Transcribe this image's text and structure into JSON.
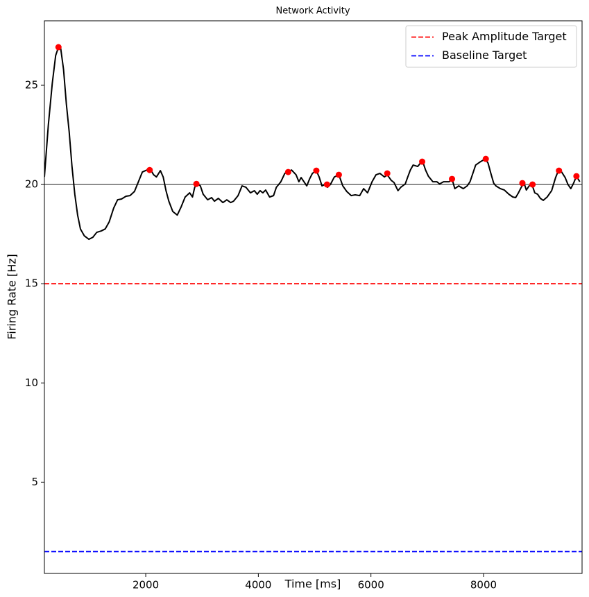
{
  "chart_data": {
    "type": "line",
    "title": "Network Activity",
    "x_label": "Time [ms]",
    "y_label": "Firing Rate [Hz]",
    "xlim": [
      200,
      9750
    ],
    "ylim": [
      0.4,
      28.25
    ],
    "xticks": [
      2000,
      4000,
      6000,
      8000
    ],
    "yticks": [
      5,
      10,
      15,
      20,
      25
    ],
    "legend": "upper right",
    "series": [
      {
        "type": "line",
        "color": "#000000",
        "x": [
          200,
          270,
          340,
          400,
          450,
          490,
          540,
          590,
          640,
          690,
          740,
          790,
          840,
          910,
          990,
          1060,
          1130,
          1210,
          1280,
          1350,
          1430,
          1500,
          1570,
          1650,
          1720,
          1800,
          1870,
          1940,
          2020,
          2090,
          2140,
          2190,
          2260,
          2310,
          2360,
          2410,
          2480,
          2560,
          2630,
          2700,
          2780,
          2830,
          2870,
          2920,
          2970,
          3020,
          3100,
          3170,
          3220,
          3290,
          3370,
          3440,
          3510,
          3560,
          3640,
          3710,
          3780,
          3860,
          3930,
          3980,
          4030,
          4080,
          4130,
          4200,
          4270,
          4320,
          4400,
          4470,
          4540,
          4590,
          4670,
          4720,
          4760,
          4810,
          4860,
          4910,
          4960,
          5030,
          5080,
          5130,
          5180,
          5230,
          5280,
          5350,
          5430,
          5500,
          5570,
          5650,
          5720,
          5800,
          5870,
          5940,
          6020,
          6090,
          6160,
          6240,
          6290,
          6360,
          6410,
          6480,
          6530,
          6610,
          6650,
          6700,
          6750,
          6830,
          6880,
          6920,
          6970,
          7020,
          7100,
          7170,
          7220,
          7290,
          7390,
          7440,
          7490,
          7560,
          7640,
          7710,
          7760,
          7810,
          7860,
          7930,
          8030,
          8080,
          8130,
          8180,
          8220,
          8300,
          8370,
          8450,
          8520,
          8570,
          8620,
          8670,
          8720,
          8760,
          8810,
          8860,
          8910,
          8960,
          9010,
          9060,
          9130,
          9210,
          9280,
          9330,
          9380,
          9450,
          9500,
          9550,
          9600,
          9650,
          9710
        ],
        "values": [
          20.38,
          23.0,
          25.1,
          26.5,
          26.92,
          26.85,
          25.8,
          24.06,
          22.66,
          20.91,
          19.51,
          18.46,
          17.76,
          17.41,
          17.24,
          17.34,
          17.59,
          17.66,
          17.76,
          18.11,
          18.81,
          19.23,
          19.27,
          19.41,
          19.44,
          19.65,
          20.14,
          20.63,
          20.73,
          20.73,
          20.49,
          20.38,
          20.7,
          20.38,
          19.69,
          19.16,
          18.64,
          18.46,
          18.88,
          19.37,
          19.58,
          19.37,
          19.86,
          20.03,
          19.93,
          19.51,
          19.23,
          19.34,
          19.16,
          19.3,
          19.09,
          19.23,
          19.09,
          19.16,
          19.44,
          19.93,
          19.86,
          19.58,
          19.69,
          19.51,
          19.69,
          19.58,
          19.72,
          19.37,
          19.44,
          19.86,
          20.14,
          20.56,
          20.66,
          20.73,
          20.49,
          20.14,
          20.35,
          20.14,
          19.93,
          20.28,
          20.56,
          20.7,
          20.38,
          19.93,
          20.0,
          19.86,
          20.0,
          20.38,
          20.49,
          19.93,
          19.65,
          19.44,
          19.48,
          19.44,
          19.79,
          19.58,
          20.14,
          20.49,
          20.56,
          20.38,
          20.49,
          20.21,
          20.1,
          19.69,
          19.86,
          20.03,
          20.35,
          20.73,
          20.98,
          20.91,
          21.08,
          21.15,
          20.73,
          20.42,
          20.14,
          20.14,
          20.03,
          20.14,
          20.14,
          20.28,
          19.79,
          19.93,
          19.79,
          19.93,
          20.14,
          20.56,
          20.98,
          21.12,
          21.29,
          21.08,
          20.56,
          20.07,
          19.93,
          19.79,
          19.72,
          19.51,
          19.37,
          19.34,
          19.58,
          19.86,
          20.07,
          19.72,
          19.93,
          20.0,
          19.58,
          19.51,
          19.3,
          19.2,
          19.37,
          19.69,
          20.35,
          20.7,
          20.66,
          20.35,
          20.0,
          19.79,
          20.07,
          20.42,
          20.14
        ]
      },
      {
        "type": "scatter",
        "color": "#ff0000",
        "x": [
          450,
          2070,
          2900,
          4530,
          5030,
          5220,
          5430,
          6290,
          6910,
          7440,
          8040,
          8690,
          8870,
          9340,
          9650
        ],
        "values": [
          26.92,
          20.73,
          20.03,
          20.63,
          20.7,
          20.0,
          20.49,
          20.56,
          21.15,
          20.28,
          21.29,
          20.07,
          20.0,
          20.7,
          20.42
        ]
      }
    ],
    "hlines": [
      {
        "name": "Peak Amplitude Target",
        "value": 15,
        "color": "#ff0000",
        "dashed": true
      },
      {
        "name": "Baseline Target",
        "value": 1.5,
        "color": "#0000ff",
        "dashed": true
      },
      {
        "value": 20,
        "color": "#808080",
        "dashed": false
      }
    ]
  }
}
